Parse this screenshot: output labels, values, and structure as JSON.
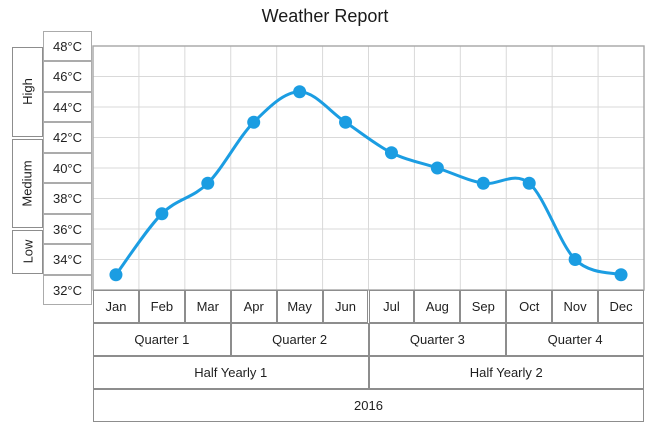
{
  "chart_data": {
    "type": "line",
    "title": "Weather Report",
    "x_categories": [
      "Jan",
      "Feb",
      "Mar",
      "Apr",
      "May",
      "Jun",
      "Jul",
      "Aug",
      "Sep",
      "Oct",
      "Nov",
      "Dec"
    ],
    "values": [
      33,
      37,
      39,
      43,
      45,
      43,
      41,
      40,
      39,
      39,
      34,
      33
    ],
    "y_unit": "°C",
    "y_ticks": [
      48,
      46,
      44,
      42,
      40,
      38,
      36,
      34,
      32
    ],
    "y_tick_labels": [
      "48°C",
      "46°C",
      "44°C",
      "42°C",
      "40°C",
      "38°C",
      "36°C",
      "34°C",
      "32°C"
    ],
    "ylim": [
      32,
      48
    ],
    "y_group_labels": [
      {
        "label": "High",
        "from": 42,
        "to": 48
      },
      {
        "label": "Medium",
        "from": 36,
        "to": 42
      },
      {
        "label": "Low",
        "from": 33,
        "to": 36
      }
    ],
    "x_group_rows": [
      {
        "name": "quarters",
        "cells": [
          {
            "label": "Quarter 1",
            "span": 3
          },
          {
            "label": "Quarter 2",
            "span": 3
          },
          {
            "label": "Quarter 3",
            "span": 3
          },
          {
            "label": "Quarter 4",
            "span": 3
          }
        ]
      },
      {
        "name": "half_years",
        "cells": [
          {
            "label": "Half Yearly 1",
            "span": 6
          },
          {
            "label": "Half Yearly 2",
            "span": 6
          }
        ]
      },
      {
        "name": "year",
        "cells": [
          {
            "label": "2016",
            "span": 12
          }
        ]
      }
    ],
    "grid": true,
    "legend": "none",
    "colors": {
      "line": "#1b9de2",
      "marker": "#1b9de2",
      "grid": "#d9d9d9",
      "plot_border": "#a6a6a6",
      "cell_border": "#8d8d8d",
      "tick_box_border": "#ababab",
      "text": "#1f1f1f",
      "background": "#ffffff"
    }
  }
}
